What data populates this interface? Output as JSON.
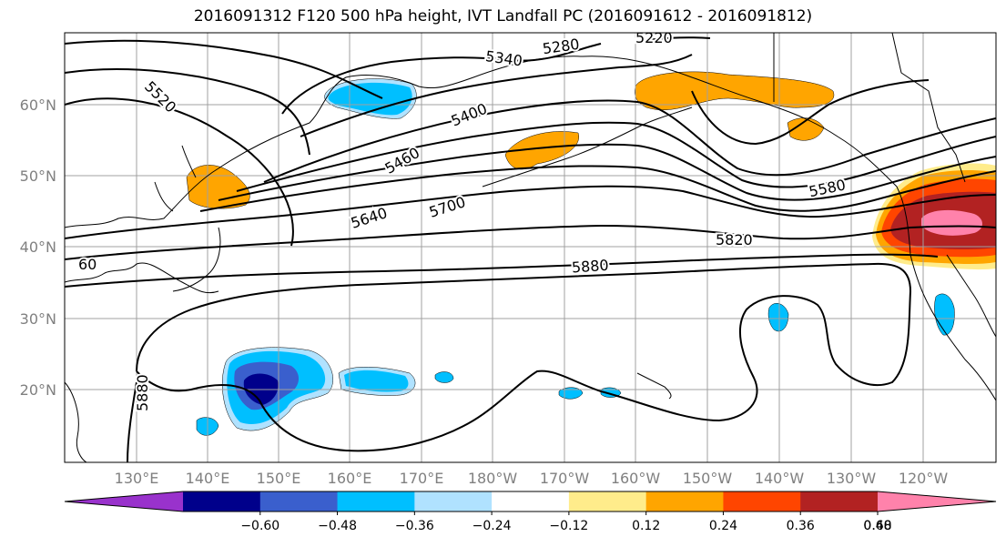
{
  "title": "2016091312 F120 500 hPa height, IVT Landfall PC (2016091612 - 2016091812)",
  "lat_labels": [
    {
      "lat": 60,
      "text": "60°N"
    },
    {
      "lat": 50,
      "text": "50°N"
    },
    {
      "lat": 40,
      "text": "40°N"
    },
    {
      "lat": 30,
      "text": "30°N"
    },
    {
      "lat": 20,
      "text": "20°N"
    }
  ],
  "lon_labels": [
    {
      "lon": 130,
      "text": "130°E"
    },
    {
      "lon": 140,
      "text": "140°E"
    },
    {
      "lon": 150,
      "text": "150°E"
    },
    {
      "lon": 160,
      "text": "160°E"
    },
    {
      "lon": 170,
      "text": "170°E"
    },
    {
      "lon": 180,
      "text": "180°W"
    },
    {
      "lon": 190,
      "text": "170°W"
    },
    {
      "lon": 200,
      "text": "160°W"
    },
    {
      "lon": 210,
      "text": "150°W"
    },
    {
      "lon": 220,
      "text": "140°W"
    },
    {
      "lon": 230,
      "text": "130°W"
    },
    {
      "lon": 240,
      "text": "120°W"
    }
  ],
  "contour_labels": [
    {
      "text": "5280"
    },
    {
      "text": "5220"
    },
    {
      "text": "5340"
    },
    {
      "text": "5520"
    },
    {
      "text": "5400"
    },
    {
      "text": "5460"
    },
    {
      "text": "5580"
    },
    {
      "text": "5640"
    },
    {
      "text": "5700"
    },
    {
      "text": "5820"
    },
    {
      "text": "5880"
    },
    {
      "text": "5880"
    },
    {
      "text": "60"
    }
  ],
  "colorbar": {
    "colors": [
      "#9932cc",
      "#00008b",
      "#3a5fcd",
      "#00bfff",
      "#b0e2ff",
      "#ffffff",
      "#ffec8b",
      "#ffa500",
      "#ff4500",
      "#b22222",
      "#ff82ab"
    ],
    "tick_labels": [
      "−0.60",
      "−0.48",
      "−0.36",
      "−0.24",
      "−0.12",
      "0.12",
      "0.24",
      "0.36",
      "0.48",
      "0.60"
    ]
  }
}
